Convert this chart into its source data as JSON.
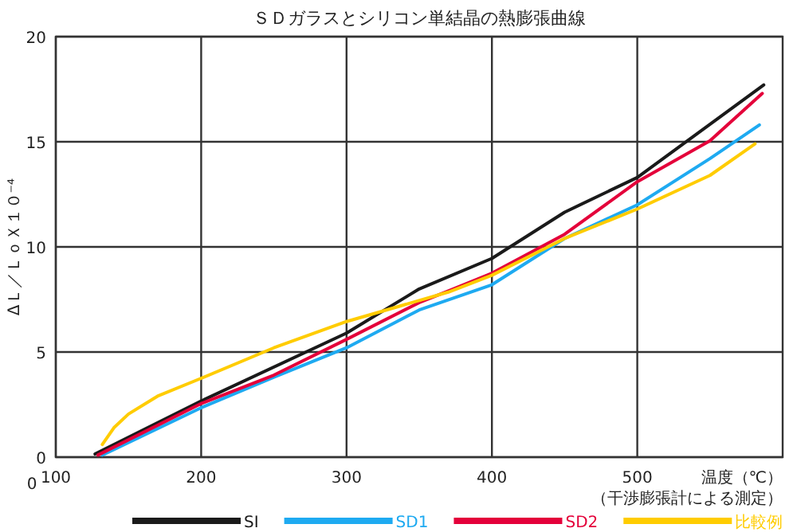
{
  "chart_data": {
    "type": "line",
    "title": "ＳＤガラスとシリコン単結晶の熱膨張曲線",
    "xlabel": "温度（℃）",
    "ylabel": "ΔＬ／ＬｏＸ１０⁻⁴",
    "annotations": [
      "（干渉膨張計による測定）",
      "0"
    ],
    "xlim": [
      100,
      600
    ],
    "xticks": [
      100,
      200,
      300,
      400,
      500
    ],
    "ylim": [
      0,
      20
    ],
    "yticks": [
      0,
      5,
      10,
      15,
      20
    ],
    "grid": true,
    "legend": "bottom",
    "line_style": "solid",
    "series": [
      {
        "name": "SI",
        "color": "#1a1a1a",
        "x": [
          127,
          200,
          300,
          350,
          400,
          450,
          500,
          587
        ],
        "values": [
          0.15,
          2.67,
          5.9,
          8.0,
          9.45,
          11.65,
          13.3,
          17.7
        ]
      },
      {
        "name": "SD1",
        "color": "#1eaaf1",
        "x": [
          132,
          200,
          250,
          300,
          350,
          400,
          450,
          500,
          550,
          584
        ],
        "values": [
          0.1,
          2.35,
          3.8,
          5.2,
          7.0,
          8.2,
          10.4,
          12.0,
          14.2,
          15.8
        ]
      },
      {
        "name": "SD2",
        "color": "#e4003a",
        "x": [
          129,
          200,
          250,
          300,
          350,
          370,
          400,
          450,
          500,
          550,
          586
        ],
        "values": [
          0.1,
          2.55,
          3.9,
          5.6,
          7.35,
          7.9,
          8.75,
          10.6,
          13.1,
          15.05,
          17.3
        ]
      },
      {
        "name": "比較例",
        "color": "#ffcc00",
        "x": [
          132,
          140,
          150,
          170,
          200,
          250,
          300,
          335,
          370,
          400,
          450,
          500,
          550,
          581
        ],
        "values": [
          0.6,
          1.4,
          2.05,
          2.9,
          3.75,
          5.2,
          6.45,
          7.15,
          7.85,
          8.65,
          10.4,
          11.8,
          13.4,
          14.9
        ]
      }
    ]
  }
}
